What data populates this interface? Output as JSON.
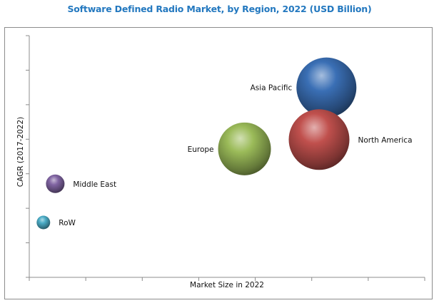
{
  "chart_data": {
    "type": "bubble",
    "title": "Software Defined Radio Market, by Region, 2022 (USD Billion)",
    "xlabel": "Market Size in 2022",
    "ylabel": "CAGR (2017-2022)",
    "xlim": [
      0,
      7
    ],
    "ylim": [
      0,
      7
    ],
    "x_ticks": 7,
    "y_ticks": 7,
    "grid": false,
    "legend": "none",
    "series": [
      {
        "name": "Asia Pacific",
        "x": 5.26,
        "y": 5.5,
        "size": 1764,
        "color": "#3a6fb5",
        "label_side": "left"
      },
      {
        "name": "North America",
        "x": 5.13,
        "y": 3.99,
        "size": 1806,
        "color": "#c0504d",
        "label_side": "right"
      },
      {
        "name": "Europe",
        "x": 3.81,
        "y": 3.72,
        "size": 1369,
        "color": "#9bbb59",
        "label_side": "left"
      },
      {
        "name": "Middle East",
        "x": 0.46,
        "y": 2.71,
        "size": 169,
        "color": "#8064a2",
        "label_side": "right"
      },
      {
        "name": "RoW",
        "x": 0.25,
        "y": 1.59,
        "size": 90,
        "color": "#4bacc6",
        "label_side": "right"
      }
    ]
  }
}
